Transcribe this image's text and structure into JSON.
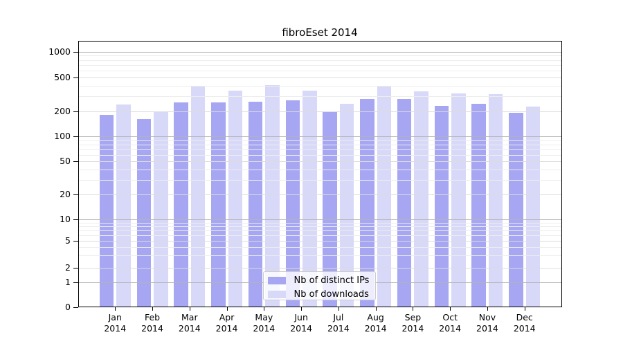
{
  "chart_data": {
    "type": "bar",
    "title": "fibroEset 2014",
    "categories": [
      "Jan",
      "Feb",
      "Mar",
      "Apr",
      "May",
      "Jun",
      "Jul",
      "Aug",
      "Sep",
      "Oct",
      "Nov",
      "Dec"
    ],
    "category_year": "2014",
    "series": [
      {
        "name": "Nb of distinct IPs",
        "color": "#a6a6f2",
        "values": [
          180,
          161,
          254,
          254,
          258,
          268,
          197,
          279,
          277,
          232,
          245,
          190
        ]
      },
      {
        "name": "Nb of downloads",
        "color": "#d8d8f8",
        "values": [
          240,
          200,
          389,
          345,
          406,
          350,
          245,
          394,
          341,
          322,
          316,
          225
        ]
      }
    ],
    "ylabel": "",
    "xlabel": "",
    "yticks": [
      0,
      1,
      2,
      5,
      10,
      20,
      50,
      100,
      200,
      500,
      1000
    ],
    "ylim": [
      0,
      1150
    ],
    "scale": "quasi-log with linear segment near zero (ticks 0,1,2,5,10,20,50,100,200,500,1000)",
    "grid": true,
    "legend_position": "lower center inside plot"
  }
}
